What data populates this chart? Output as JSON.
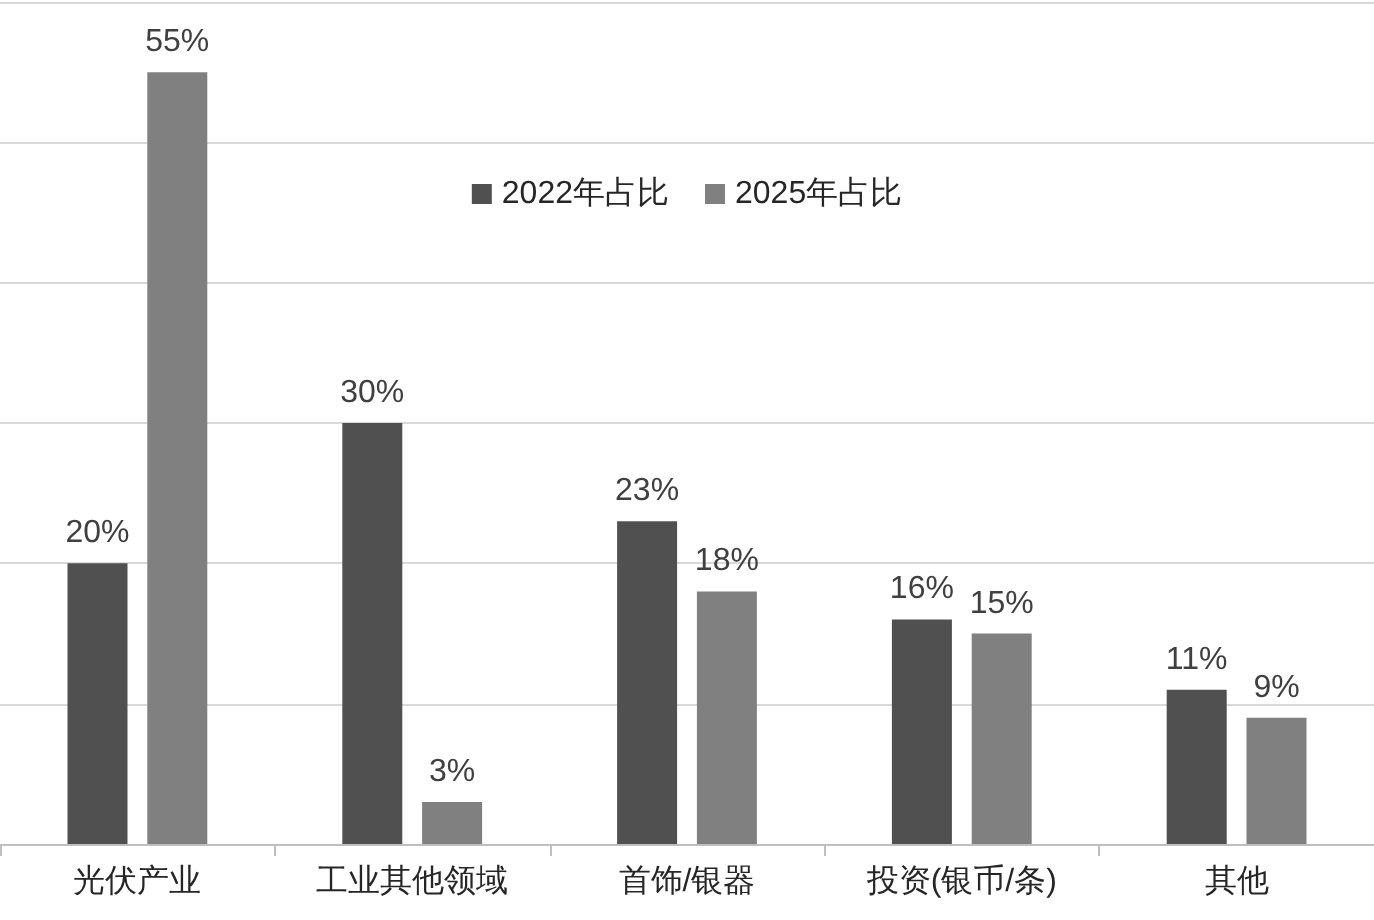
{
  "chart_data": {
    "type": "bar",
    "categories": [
      "光伏产业",
      "工业其他领域",
      "首饰/银器",
      "投资(银币/条)",
      "其他"
    ],
    "series": [
      {
        "name": "2022年占比",
        "color": "#505050",
        "values": [
          20,
          30,
          23,
          16,
          11
        ],
        "value_labels": [
          "20%",
          "30%",
          "23%",
          "16%",
          "11%"
        ]
      },
      {
        "name": "2025年占比",
        "color": "#808080",
        "values": [
          55,
          3,
          18,
          15,
          9
        ],
        "value_labels": [
          "55%",
          "3%",
          "18%",
          "15%",
          "9%"
        ]
      }
    ],
    "ylim": [
      0,
      60
    ],
    "yticks": [
      0,
      10,
      20,
      30,
      40,
      50,
      60
    ],
    "grid": "y",
    "legend": "top",
    "tick_labels": "x"
  }
}
